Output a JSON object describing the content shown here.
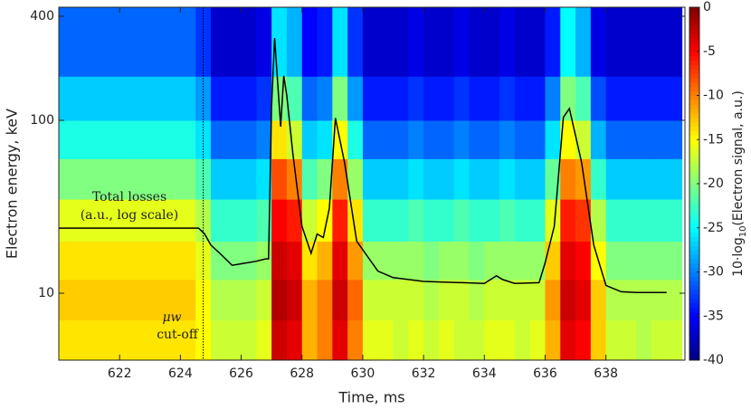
{
  "chart_data": {
    "type": "heatmap",
    "xlabel": "Time, ms",
    "ylabel": "Electron energy, keV",
    "colorbar_label": {
      "prefix": "10·log",
      "sub": "10",
      "suffix": "(Electron signal, a.u.)"
    },
    "xlim": [
      620,
      640.6
    ],
    "ylim": [
      4.1,
      451
    ],
    "log_y": true,
    "xticks": [
      622,
      624,
      626,
      628,
      630,
      632,
      634,
      636,
      638
    ],
    "yticks": [
      10,
      100,
      400
    ],
    "clim": [
      -40,
      0
    ],
    "cticks": [
      0,
      -5,
      -10,
      -15,
      -20,
      -25,
      -30,
      -35,
      -40
    ],
    "colormap": "jet",
    "x_bins": [
      620,
      620.5,
      621,
      621.5,
      622,
      622.5,
      623,
      623.5,
      624,
      624.5,
      625,
      625.5,
      626,
      626.5,
      627,
      627.5,
      628,
      628.5,
      629,
      629.5,
      630,
      630.5,
      631,
      631.5,
      632,
      632.5,
      633,
      633.5,
      634,
      634.5,
      635,
      635.5,
      636,
      636.5,
      637,
      637.5,
      638,
      638.5,
      639,
      639.5,
      640,
      640.5
    ],
    "y_bins": [
      4.1,
      7,
      12,
      20,
      35,
      60,
      100,
      180,
      451
    ],
    "z": [
      [
        -14,
        -14,
        -14,
        -14,
        -14,
        -14,
        -14,
        -14,
        -14,
        -15,
        -17,
        -17,
        -17,
        -16,
        -3,
        -4,
        -12,
        -10,
        -4,
        -10,
        -16,
        -16,
        -17,
        -16,
        -17,
        -16,
        -17,
        -17,
        -16,
        -16,
        -17,
        -16,
        -12,
        -4,
        -5,
        -13,
        -17,
        -17,
        -18,
        -17,
        -17
      ],
      [
        -13,
        -13,
        -13,
        -13,
        -13,
        -13,
        -13,
        -13,
        -13,
        -15,
        -18,
        -18,
        -18,
        -17,
        -2,
        -3,
        -12,
        -10,
        -3,
        -9,
        -17,
        -17,
        -17,
        -17,
        -18,
        -17,
        -17,
        -18,
        -17,
        -17,
        -17,
        -17,
        -11,
        -3,
        -4,
        -13,
        -18,
        -18,
        -18,
        -18,
        -18
      ],
      [
        -14,
        -14,
        -14,
        -14,
        -14,
        -14,
        -14,
        -14,
        -14,
        -16,
        -20,
        -20,
        -20,
        -19,
        -3,
        -4,
        -14,
        -12,
        -4,
        -11,
        -19,
        -19,
        -19,
        -19,
        -20,
        -19,
        -19,
        -20,
        -19,
        -19,
        -19,
        -19,
        -13,
        -4,
        -5,
        -15,
        -20,
        -20,
        -20,
        -20,
        -20
      ],
      [
        -16,
        -16,
        -16,
        -16,
        -16,
        -16,
        -16,
        -16,
        -16,
        -18,
        -23,
        -23,
        -23,
        -22,
        -5,
        -6,
        -17,
        -15,
        -6,
        -14,
        -23,
        -23,
        -23,
        -22,
        -23,
        -23,
        -22,
        -23,
        -23,
        -22,
        -23,
        -23,
        -16,
        -6,
        -7,
        -18,
        -23,
        -23,
        -23,
        -23,
        -23
      ],
      [
        -20,
        -20,
        -20,
        -20,
        -20,
        -20,
        -20,
        -20,
        -20,
        -22,
        -27,
        -27,
        -27,
        -26,
        -8,
        -10,
        -22,
        -20,
        -10,
        -19,
        -27,
        -27,
        -27,
        -26,
        -27,
        -27,
        -26,
        -27,
        -27,
        -26,
        -27,
        -27,
        -21,
        -10,
        -11,
        -23,
        -27,
        -27,
        -27,
        -27,
        -27
      ],
      [
        -24,
        -24,
        -24,
        -24,
        -24,
        -24,
        -24,
        -24,
        -24,
        -26,
        -31,
        -31,
        -31,
        -30,
        -14,
        -17,
        -27,
        -26,
        -15,
        -24,
        -31,
        -31,
        -31,
        -30,
        -31,
        -31,
        -30,
        -31,
        -31,
        -30,
        -31,
        -31,
        -26,
        -15,
        -17,
        -28,
        -31,
        -31,
        -31,
        -31,
        -31
      ],
      [
        -27,
        -27,
        -27,
        -27,
        -27,
        -27,
        -27,
        -27,
        -27,
        -29,
        -34,
        -34,
        -34,
        -33,
        -20,
        -22,
        -31,
        -30,
        -20,
        -29,
        -34,
        -34,
        -34,
        -33,
        -34,
        -34,
        -33,
        -34,
        -34,
        -33,
        -34,
        -34,
        -30,
        -20,
        -22,
        -32,
        -34,
        -34,
        -34,
        -34,
        -34
      ],
      [
        -31,
        -31,
        -31,
        -31,
        -31,
        -31,
        -31,
        -31,
        -31,
        -33,
        -37,
        -37,
        -37,
        -36,
        -26,
        -28,
        -35,
        -34,
        -26,
        -33,
        -37,
        -37,
        -37,
        -36,
        -37,
        -37,
        -36,
        -37,
        -37,
        -36,
        -37,
        -37,
        -34,
        -25,
        -28,
        -36,
        -37,
        -37,
        -37,
        -37,
        -37
      ]
    ],
    "line": {
      "color": "#000000",
      "x": [
        620,
        624.6,
        624.8,
        625,
        625.3,
        625.7,
        626,
        626.5,
        626.8,
        626.9,
        627,
        627.1,
        627.3,
        627.4,
        627.5,
        627.7,
        628,
        628.3,
        628.5,
        628.7,
        628.9,
        629.1,
        629.4,
        629.8,
        630.5,
        631,
        632,
        634,
        634.4,
        634.6,
        635,
        635.8,
        636,
        636.3,
        636.6,
        636.8,
        637.2,
        637.6,
        638,
        638.5,
        639,
        640
      ],
      "values": [
        23.8,
        23.8,
        22,
        19,
        17,
        14.5,
        14.8,
        15.3,
        15.8,
        15.8,
        120,
        299,
        92,
        181,
        140,
        64,
        24.4,
        17,
        22,
        21,
        31,
        103,
        57,
        20,
        13.4,
        12.3,
        11.7,
        11.4,
        12.6,
        12,
        11.4,
        11.5,
        15,
        24.4,
        104,
        117,
        57,
        19,
        11.1,
        10.2,
        10.1,
        10.1
      ]
    },
    "cutoff_time": 624.75,
    "annotations": {
      "losses_1": "Total losses",
      "losses_2": "(a.u., log scale)",
      "cutoff_1": "μw",
      "cutoff_2": "cut-off"
    }
  }
}
